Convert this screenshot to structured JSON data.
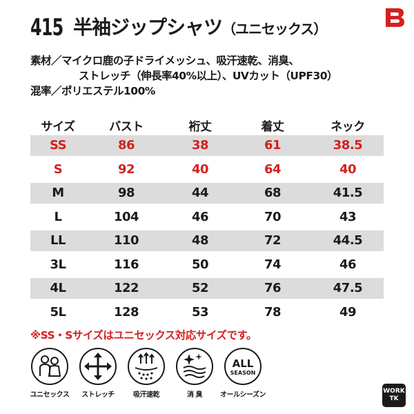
{
  "title": {
    "number": "415",
    "name": "半袖ジップシャツ",
    "subtitle": "（ユニセックス）"
  },
  "specs": {
    "line1": "素材／マイクロ鹿の子ドライメッシュ、吸汗速乾、消臭、",
    "line2": "ストレッチ（伸長率40%以上）、UVカット（UPF30）",
    "line3": "混率／ポリエステル100%"
  },
  "size_table": {
    "headers": [
      "サイズ",
      "バスト",
      "裄丈",
      "着丈",
      "ネック"
    ],
    "rows": [
      [
        "SS",
        "86",
        "38",
        "61",
        "38.5"
      ],
      [
        "S",
        "92",
        "40",
        "64",
        "40"
      ],
      [
        "M",
        "98",
        "44",
        "68",
        "41.5"
      ],
      [
        "L",
        "104",
        "46",
        "70",
        "43"
      ],
      [
        "LL",
        "110",
        "48",
        "72",
        "44.5"
      ],
      [
        "3L",
        "116",
        "50",
        "74",
        "46"
      ],
      [
        "4L",
        "122",
        "52",
        "76",
        "47.5"
      ],
      [
        "5L",
        "128",
        "53",
        "78",
        "49"
      ]
    ]
  },
  "note": "※SS・Sサイズはユニセックス対応サイズです。",
  "features": [
    {
      "label": "ユニセックス",
      "icon": "unisex-icon"
    },
    {
      "label": "ストレッチ",
      "icon": "stretch-icon"
    },
    {
      "label": "吸汗速乾",
      "icon": "quick-dry-icon"
    },
    {
      "label": "消 臭",
      "icon": "deodorant-icon"
    },
    {
      "label": "オールシーズン",
      "icon": "all-season-icon",
      "badge_line1": "ALL",
      "badge_line2": "SEASON"
    }
  ],
  "badge": {
    "line1": "WORK",
    "line2": "TK"
  },
  "colors": {
    "accent_red": "#d42020",
    "row_shade": "#dcdcdc",
    "text": "#1a1a1a"
  }
}
